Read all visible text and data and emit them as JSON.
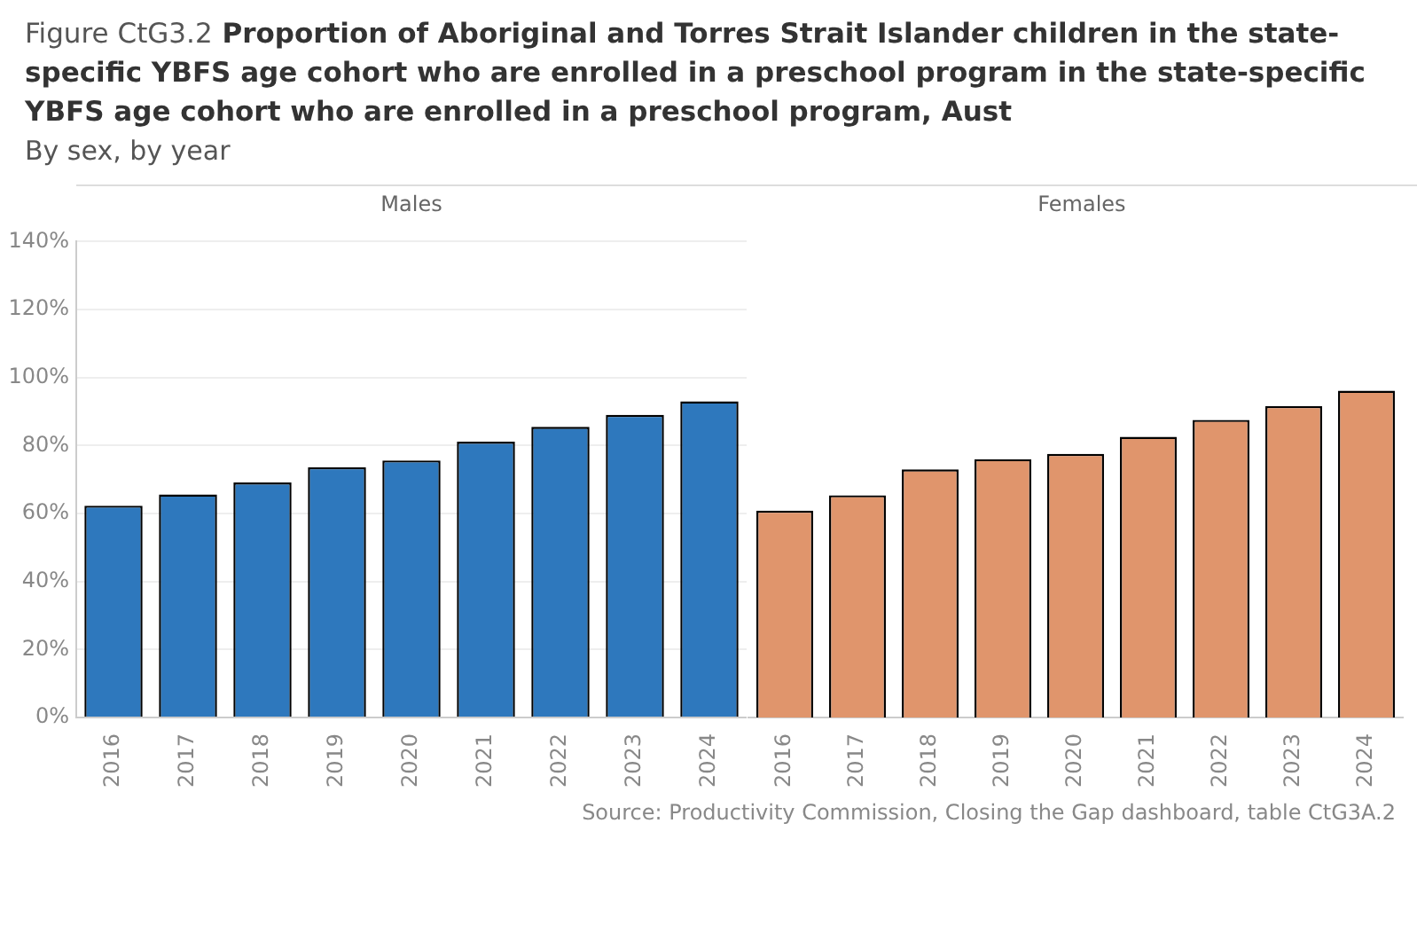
{
  "chart_data": [
    {
      "type": "bar",
      "title": "Figure CtG3.2 Proportion of Aboriginal and Torres Strait Islander children in the state-specific YBFS age cohort who are enrolled in a preschool program in the state-specific YBFS age cohort who are enrolled in a preschool program, Aust",
      "subtitle": "By sex, by year",
      "categories": [
        "2016",
        "2017",
        "2018",
        "2019",
        "2020",
        "2021",
        "2022",
        "2023",
        "2024"
      ],
      "series": [
        {
          "name": "Males",
          "color": "#2e78bd",
          "values": [
            62.3,
            65.6,
            69.1,
            73.6,
            75.6,
            81.1,
            85.5,
            89.0,
            93.0
          ]
        }
      ],
      "ylim": [
        0,
        140
      ],
      "yticks": [
        {
          "value": 0,
          "label": "0%"
        },
        {
          "value": 20,
          "label": "20%"
        },
        {
          "value": 40,
          "label": "40%"
        },
        {
          "value": 60,
          "label": "60%"
        },
        {
          "value": 80,
          "label": "80%"
        },
        {
          "value": 100,
          "label": "100%"
        },
        {
          "value": 120,
          "label": "120%"
        },
        {
          "value": 140,
          "label": "140%"
        }
      ],
      "grid": "y",
      "legend": false
    },
    {
      "type": "bar",
      "categories": [
        "2016",
        "2017",
        "2018",
        "2019",
        "2020",
        "2021",
        "2022",
        "2023",
        "2024"
      ],
      "series": [
        {
          "name": "Females",
          "color": "#e0956c",
          "values": [
            60.1,
            64.6,
            72.1,
            75.1,
            76.6,
            81.6,
            86.5,
            90.5,
            95.0
          ]
        }
      ],
      "ylim": [
        0,
        140
      ],
      "yticks": [
        {
          "value": 0,
          "label": null
        },
        {
          "value": 20,
          "label": null
        },
        {
          "value": 40,
          "label": null
        },
        {
          "value": 60,
          "label": null
        },
        {
          "value": 80,
          "label": null
        },
        {
          "value": 100,
          "label": null
        },
        {
          "value": 120,
          "label": null
        },
        {
          "value": 140,
          "label": null
        }
      ],
      "tick_labels": "x",
      "grid": "y",
      "legend": false,
      "annotations": [
        "Source: Productivity Commission, Closing the Gap dashboard, table CtG3A.2"
      ]
    }
  ]
}
